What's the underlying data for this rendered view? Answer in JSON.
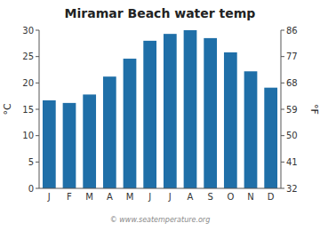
{
  "chart_data": {
    "type": "bar",
    "title": "Miramar Beach water temp",
    "categories": [
      "J",
      "F",
      "M",
      "A",
      "M",
      "J",
      "J",
      "A",
      "S",
      "O",
      "N",
      "D"
    ],
    "values": [
      16.7,
      16.2,
      17.8,
      21.2,
      24.6,
      28.0,
      29.3,
      30.0,
      28.5,
      25.8,
      22.2,
      19.1
    ],
    "color": "#1f6fa8",
    "ylabel": "°C",
    "y2label": "°F",
    "ylim": [
      0,
      30
    ],
    "yticks": [
      0,
      5,
      10,
      15,
      20,
      25,
      30
    ],
    "y2lim": [
      32,
      86
    ],
    "y2ticks": [
      32,
      41,
      50,
      59,
      68,
      77,
      86
    ],
    "grid": false,
    "annotations": [
      "© www.seatemperature.org"
    ]
  }
}
